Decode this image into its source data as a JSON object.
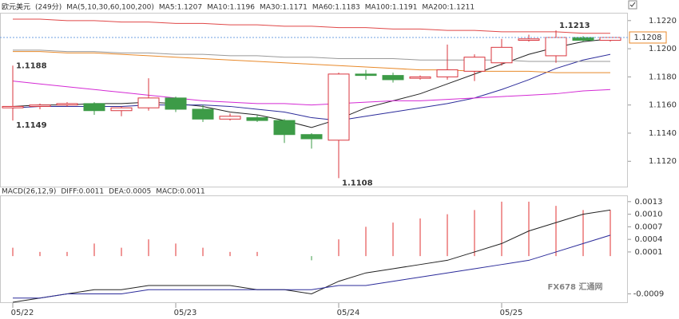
{
  "chart_data": [
    {
      "type": "candlestick",
      "title": "欧元美元",
      "subtitle": "(249分)",
      "indicator": "MA(5,10,30,60,100,200)",
      "categories": [
        "05/22",
        null,
        null,
        null,
        null,
        null,
        "05/23",
        null,
        null,
        null,
        null,
        null,
        "05/24",
        null,
        null,
        null,
        null,
        null,
        "05/25",
        null,
        null,
        null,
        null
      ],
      "open": [
        1.1158,
        1.1159,
        1.116,
        1.1161,
        1.1156,
        1.1158,
        1.1165,
        1.1157,
        1.115,
        1.1151,
        1.1149,
        1.1139,
        1.1135,
        1.1182,
        1.1181,
        1.1179,
        1.118,
        1.1184,
        1.119,
        1.1206,
        1.1195,
        1.1208,
        1.1206
      ],
      "high": [
        1.1188,
        1.1161,
        1.1162,
        1.1162,
        1.1159,
        1.1179,
        1.1166,
        1.116,
        1.1154,
        1.1153,
        1.115,
        1.114,
        1.1183,
        1.1185,
        1.1183,
        1.1181,
        1.1203,
        1.1196,
        1.1207,
        1.121,
        1.1213,
        1.1209,
        1.1207
      ],
      "low": [
        1.1149,
        1.1157,
        1.1159,
        1.1153,
        1.1152,
        1.1156,
        1.1155,
        1.1148,
        1.1149,
        1.1148,
        1.1133,
        1.1129,
        1.1108,
        1.1178,
        1.1176,
        1.1178,
        1.1178,
        1.1177,
        1.1188,
        1.1205,
        1.119,
        1.1205,
        1.1205
      ],
      "close": [
        1.1159,
        1.116,
        1.1161,
        1.1156,
        1.1158,
        1.1165,
        1.1157,
        1.115,
        1.1152,
        1.1149,
        1.1139,
        1.1136,
        1.1182,
        1.1181,
        1.1178,
        1.118,
        1.1185,
        1.1194,
        1.1201,
        1.1207,
        1.1208,
        1.1206,
        1.1208
      ],
      "up_color": "#d9363e",
      "down_color": "#3d9b47",
      "series": [
        {
          "name": "MA5:1.1207",
          "color": "#222222",
          "values": [
            1.1159,
            1.116,
            1.116,
            1.1161,
            1.1161,
            1.1162,
            1.1161,
            1.1159,
            1.1155,
            1.1153,
            1.1149,
            1.1144,
            1.115,
            1.1158,
            1.1163,
            1.1168,
            1.1175,
            1.1182,
            1.1189,
            1.1196,
            1.1201,
            1.1205,
            1.1207
          ]
        },
        {
          "name": "MA10:1.1196",
          "color": "#2b2b9a",
          "values": [
            1.1158,
            1.1159,
            1.1159,
            1.1159,
            1.1159,
            1.116,
            1.116,
            1.116,
            1.1159,
            1.1157,
            1.1155,
            1.1151,
            1.1149,
            1.1152,
            1.1155,
            1.1158,
            1.1161,
            1.1165,
            1.1171,
            1.1178,
            1.1186,
            1.1192,
            1.1196
          ]
        },
        {
          "name": "MA30:1.1171",
          "color": "#d42ad4",
          "values": [
            1.1177,
            1.1175,
            1.1173,
            1.1171,
            1.1169,
            1.1167,
            1.1165,
            1.1163,
            1.1162,
            1.1161,
            1.1161,
            1.116,
            1.1161,
            1.1162,
            1.1163,
            1.1163,
            1.1164,
            1.1165,
            1.1166,
            1.1167,
            1.1168,
            1.117,
            1.1171
          ]
        },
        {
          "name": "MA60:1.1183",
          "color": "#e8892a",
          "values": [
            1.1198,
            1.1198,
            1.1197,
            1.1197,
            1.1196,
            1.1195,
            1.1194,
            1.1193,
            1.1192,
            1.1191,
            1.119,
            1.1189,
            1.1188,
            1.1187,
            1.1186,
            1.1185,
            1.1185,
            1.1184,
            1.1184,
            1.1184,
            1.1183,
            1.1183,
            1.1183
          ]
        },
        {
          "name": "MA100:1.1191",
          "color": "#999999",
          "values": [
            1.1199,
            1.1199,
            1.1198,
            1.1198,
            1.1197,
            1.1197,
            1.1196,
            1.1196,
            1.1195,
            1.1195,
            1.1194,
            1.1194,
            1.1193,
            1.1193,
            1.1193,
            1.1192,
            1.1192,
            1.1192,
            1.1192,
            1.1191,
            1.1191,
            1.1191,
            1.1191
          ]
        },
        {
          "name": "MA200:1.1211",
          "color": "#e04848",
          "values": [
            1.1221,
            1.1221,
            1.122,
            1.122,
            1.1219,
            1.1219,
            1.1218,
            1.1218,
            1.1217,
            1.1217,
            1.1216,
            1.1216,
            1.1215,
            1.1215,
            1.1214,
            1.1214,
            1.1213,
            1.1213,
            1.1212,
            1.1212,
            1.1212,
            1.1211,
            1.1211
          ]
        }
      ],
      "ylim": [
        1.1102,
        1.1225
      ],
      "yticks": [
        {
          "value": 1.112,
          "label": "1.1120"
        },
        {
          "value": 1.114,
          "label": "1.1140"
        },
        {
          "value": 1.116,
          "label": "1.1160"
        },
        {
          "value": 1.118,
          "label": "1.1180"
        },
        {
          "value": 1.12,
          "label": "1.1200"
        },
        {
          "value": 1.122,
          "label": "1.1220"
        }
      ],
      "watermark": "FX678 汇通网"
    },
    {
      "type": "macd",
      "title": "MACD(26,12,9)",
      "series": [
        {
          "name": "DIFF:0.0011",
          "color": "#222222",
          "values": [
            -0.0011,
            -0.001,
            -0.0009,
            -0.0008,
            -0.0008,
            -0.0007,
            -0.0007,
            -0.0007,
            -0.0007,
            -0.0008,
            -0.0008,
            -0.0009,
            -0.0006,
            -0.0004,
            -0.0003,
            -0.0002,
            -0.0001,
            0.0001,
            0.0003,
            0.0006,
            0.0008,
            0.001,
            0.0011
          ]
        },
        {
          "name": "DEA:0.0005",
          "color": "#2b2b9a",
          "values": [
            -0.001,
            -0.001,
            -0.0009,
            -0.0009,
            -0.0009,
            -0.0008,
            -0.0008,
            -0.0008,
            -0.0008,
            -0.0008,
            -0.0008,
            -0.0008,
            -0.0007,
            -0.0007,
            -0.0006,
            -0.0005,
            -0.0004,
            -0.0003,
            -0.0002,
            -0.0001,
            0.0001,
            0.0003,
            0.0005
          ]
        },
        {
          "name": "MACD:0.0011",
          "color": "#e03030",
          "values": [
            0.0002,
            0.0001,
            0.0001,
            0.0003,
            0.0002,
            0.0004,
            0.0003,
            0.0002,
            0.0001,
            0.0001,
            0.0,
            -0.0001,
            0.0004,
            0.0007,
            0.0008,
            0.0009,
            0.001,
            0.0011,
            0.0013,
            0.0013,
            0.0012,
            0.0011,
            0.0011
          ]
        }
      ],
      "ylim": [
        -0.0011,
        0.00143
      ],
      "yticks": [
        -0.0009,
        0.0001,
        0.0004,
        0.0007,
        {
          "value": 0.001,
          "label": "0.0010"
        },
        0.0013
      ]
    }
  ]
}
